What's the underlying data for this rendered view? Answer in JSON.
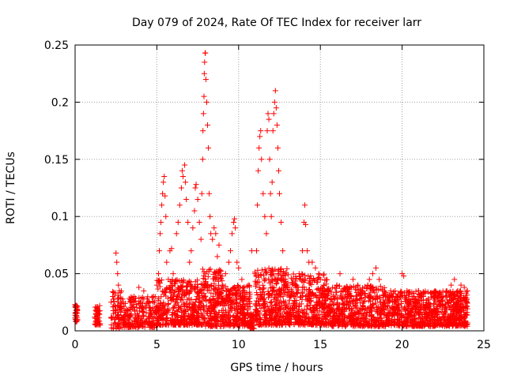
{
  "chart_data": {
    "type": "scatter",
    "title": "Day 079 of 2024, Rate Of TEC Index for receiver larr",
    "xlabel": "GPS time / hours",
    "ylabel": "ROTI / TECUs",
    "xlim": [
      0,
      25
    ],
    "ylim": [
      0,
      0.25
    ],
    "xticks": [
      0,
      5,
      10,
      15,
      20,
      25
    ],
    "yticks": [
      0,
      0.05,
      0.1,
      0.15,
      0.2,
      0.25
    ],
    "xtick_labels": [
      "0",
      "5",
      "10",
      "15",
      "20",
      "25"
    ],
    "ytick_labels": [
      "0",
      "0.05",
      "0.1",
      "0.15",
      "0.2",
      "0.25"
    ],
    "grid": true,
    "marker": "+",
    "color": "#ff0000",
    "points": [
      [
        0.0,
        0.023
      ],
      [
        0.0,
        0.021
      ],
      [
        0.05,
        0.015
      ],
      [
        0.05,
        0.01
      ],
      [
        0.1,
        0.008
      ],
      [
        0.05,
        0.018
      ],
      [
        0.1,
        0.022
      ],
      [
        1.2,
        0.012
      ],
      [
        1.3,
        0.018
      ],
      [
        1.35,
        0.02
      ],
      [
        1.4,
        0.009
      ],
      [
        1.45,
        0.015
      ],
      [
        1.5,
        0.022
      ],
      [
        1.3,
        0.006
      ],
      [
        2.2,
        0.025
      ],
      [
        2.3,
        0.03
      ],
      [
        2.35,
        0.015
      ],
      [
        2.4,
        0.01
      ],
      [
        2.45,
        0.033
      ],
      [
        2.5,
        0.068
      ],
      [
        2.55,
        0.06
      ],
      [
        2.6,
        0.05
      ],
      [
        2.65,
        0.04
      ],
      [
        2.7,
        0.035
      ],
      [
        2.75,
        0.02
      ],
      [
        2.8,
        0.028
      ],
      [
        3.0,
        0.012
      ],
      [
        3.2,
        0.018
      ],
      [
        3.4,
        0.025
      ],
      [
        3.6,
        0.03
      ],
      [
        3.8,
        0.015
      ],
      [
        3.9,
        0.038
      ],
      [
        4.0,
        0.022
      ],
      [
        4.2,
        0.035
      ],
      [
        4.4,
        0.028
      ],
      [
        4.6,
        0.02
      ],
      [
        4.8,
        0.03
      ],
      [
        5.0,
        0.04
      ],
      [
        5.1,
        0.05
      ],
      [
        5.15,
        0.07
      ],
      [
        5.2,
        0.085
      ],
      [
        5.25,
        0.095
      ],
      [
        5.3,
        0.11
      ],
      [
        5.35,
        0.12
      ],
      [
        5.4,
        0.13
      ],
      [
        5.45,
        0.135
      ],
      [
        5.5,
        0.118
      ],
      [
        5.55,
        0.1
      ],
      [
        5.6,
        0.06
      ],
      [
        5.7,
        0.045
      ],
      [
        5.8,
        0.07
      ],
      [
        5.9,
        0.072
      ],
      [
        6.0,
        0.05
      ],
      [
        6.1,
        0.035
      ],
      [
        6.2,
        0.085
      ],
      [
        6.3,
        0.095
      ],
      [
        6.4,
        0.11
      ],
      [
        6.5,
        0.125
      ],
      [
        6.55,
        0.14
      ],
      [
        6.6,
        0.135
      ],
      [
        6.7,
        0.145
      ],
      [
        6.75,
        0.13
      ],
      [
        6.8,
        0.115
      ],
      [
        6.9,
        0.095
      ],
      [
        7.0,
        0.06
      ],
      [
        7.1,
        0.07
      ],
      [
        7.2,
        0.09
      ],
      [
        7.3,
        0.105
      ],
      [
        7.35,
        0.125
      ],
      [
        7.4,
        0.128
      ],
      [
        7.5,
        0.115
      ],
      [
        7.6,
        0.095
      ],
      [
        7.7,
        0.08
      ],
      [
        7.75,
        0.12
      ],
      [
        7.8,
        0.15
      ],
      [
        7.82,
        0.175
      ],
      [
        7.85,
        0.19
      ],
      [
        7.88,
        0.205
      ],
      [
        7.9,
        0.225
      ],
      [
        7.92,
        0.235
      ],
      [
        7.95,
        0.243
      ],
      [
        7.97,
        0.243
      ],
      [
        8.0,
        0.22
      ],
      [
        8.05,
        0.2
      ],
      [
        8.1,
        0.18
      ],
      [
        8.15,
        0.16
      ],
      [
        8.2,
        0.12
      ],
      [
        8.25,
        0.1
      ],
      [
        8.3,
        0.085
      ],
      [
        8.4,
        0.08
      ],
      [
        8.5,
        0.09
      ],
      [
        8.6,
        0.085
      ],
      [
        8.7,
        0.065
      ],
      [
        8.8,
        0.075
      ],
      [
        9.0,
        0.04
      ],
      [
        9.2,
        0.05
      ],
      [
        9.4,
        0.06
      ],
      [
        9.5,
        0.07
      ],
      [
        9.6,
        0.085
      ],
      [
        9.7,
        0.095
      ],
      [
        9.75,
        0.098
      ],
      [
        9.8,
        0.09
      ],
      [
        9.9,
        0.06
      ],
      [
        10.0,
        0.055
      ],
      [
        10.2,
        0.045
      ],
      [
        10.4,
        0.03
      ],
      [
        10.6,
        0.04
      ],
      [
        10.8,
        0.07
      ],
      [
        11.0,
        0.05
      ],
      [
        11.1,
        0.07
      ],
      [
        11.15,
        0.11
      ],
      [
        11.2,
        0.14
      ],
      [
        11.25,
        0.16
      ],
      [
        11.3,
        0.17
      ],
      [
        11.35,
        0.175
      ],
      [
        11.4,
        0.15
      ],
      [
        11.5,
        0.12
      ],
      [
        11.6,
        0.1
      ],
      [
        11.7,
        0.085
      ],
      [
        11.75,
        0.175
      ],
      [
        11.8,
        0.19
      ],
      [
        11.85,
        0.185
      ],
      [
        11.9,
        0.15
      ],
      [
        11.95,
        0.12
      ],
      [
        12.0,
        0.1
      ],
      [
        12.05,
        0.13
      ],
      [
        12.1,
        0.175
      ],
      [
        12.15,
        0.19
      ],
      [
        12.2,
        0.2
      ],
      [
        12.25,
        0.21
      ],
      [
        12.3,
        0.195
      ],
      [
        12.35,
        0.18
      ],
      [
        12.4,
        0.16
      ],
      [
        12.45,
        0.14
      ],
      [
        12.5,
        0.12
      ],
      [
        12.6,
        0.095
      ],
      [
        12.7,
        0.07
      ],
      [
        12.8,
        0.05
      ],
      [
        13.0,
        0.04
      ],
      [
        13.2,
        0.03
      ],
      [
        13.5,
        0.04
      ],
      [
        13.7,
        0.05
      ],
      [
        13.9,
        0.07
      ],
      [
        14.0,
        0.095
      ],
      [
        14.05,
        0.11
      ],
      [
        14.1,
        0.093
      ],
      [
        14.2,
        0.07
      ],
      [
        14.3,
        0.06
      ],
      [
        14.5,
        0.06
      ],
      [
        14.7,
        0.055
      ],
      [
        14.9,
        0.05
      ],
      [
        15.0,
        0.045
      ],
      [
        15.2,
        0.04
      ],
      [
        15.5,
        0.035
      ],
      [
        15.8,
        0.03
      ],
      [
        16.0,
        0.04
      ],
      [
        16.2,
        0.05
      ],
      [
        16.4,
        0.035
      ],
      [
        16.7,
        0.03
      ],
      [
        17.0,
        0.045
      ],
      [
        17.3,
        0.04
      ],
      [
        17.6,
        0.035
      ],
      [
        17.9,
        0.04
      ],
      [
        18.0,
        0.045
      ],
      [
        18.2,
        0.05
      ],
      [
        18.4,
        0.055
      ],
      [
        18.6,
        0.045
      ],
      [
        18.8,
        0.035
      ],
      [
        19.0,
        0.03
      ],
      [
        19.3,
        0.035
      ],
      [
        19.6,
        0.025
      ],
      [
        19.9,
        0.03
      ],
      [
        20.0,
        0.05
      ],
      [
        20.1,
        0.048
      ],
      [
        20.3,
        0.035
      ],
      [
        20.6,
        0.03
      ],
      [
        21.0,
        0.035
      ],
      [
        21.3,
        0.03
      ],
      [
        21.6,
        0.028
      ],
      [
        21.9,
        0.03
      ],
      [
        22.2,
        0.025
      ],
      [
        22.5,
        0.03
      ],
      [
        22.8,
        0.025
      ],
      [
        23.0,
        0.04
      ],
      [
        23.2,
        0.045
      ],
      [
        23.4,
        0.035
      ],
      [
        23.6,
        0.04
      ],
      [
        23.8,
        0.038
      ],
      [
        24.0,
        0.035
      ]
    ],
    "bands": [
      [
        0.0,
        0.15,
        0.008,
        0.024,
        30
      ],
      [
        1.2,
        1.55,
        0.005,
        0.022,
        40
      ],
      [
        2.2,
        2.85,
        0.002,
        0.035,
        70
      ],
      [
        2.9,
        5.0,
        0.003,
        0.03,
        220
      ],
      [
        5.0,
        7.8,
        0.005,
        0.045,
        420
      ],
      [
        7.8,
        9.0,
        0.004,
        0.055,
        220
      ],
      [
        9.0,
        10.7,
        0.004,
        0.04,
        280
      ],
      [
        10.7,
        10.95,
        0.002,
        0.015,
        40
      ],
      [
        11.0,
        13.0,
        0.005,
        0.055,
        360
      ],
      [
        13.0,
        15.5,
        0.005,
        0.05,
        420
      ],
      [
        15.5,
        19.0,
        0.004,
        0.04,
        520
      ],
      [
        19.0,
        22.0,
        0.004,
        0.035,
        460
      ],
      [
        22.0,
        24.0,
        0.004,
        0.035,
        360
      ]
    ]
  }
}
